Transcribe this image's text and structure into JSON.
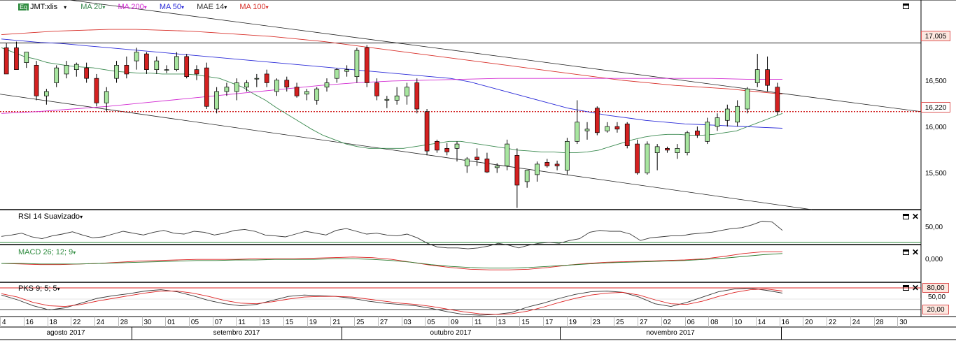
{
  "legend": {
    "eq_badge": "Eq",
    "symbol": "JMT:xlis",
    "ma20": "MA 20",
    "ma200": "MA 200",
    "ma50": "MA 50",
    "mae14": "MAE 14",
    "ma100": "MA 100",
    "colors": {
      "ma20": "#3b8a50",
      "ma200": "#d22bd2",
      "ma50": "#2a2ad8",
      "mae14": "#333333",
      "ma100": "#d8302a"
    }
  },
  "price_panel": {
    "resistance_label": "17,005",
    "last_price_label": "16,220",
    "ticks": [
      "16,500",
      "16,000",
      "15,500"
    ]
  },
  "rsi_panel": {
    "title": "RSI 14 Suavizado",
    "tick": "50,00"
  },
  "macd_panel": {
    "title": "MACD 26; 12; 9",
    "tick": "0,000"
  },
  "pks_panel": {
    "title": "PKS 9; 5; 5",
    "upper_label": "80,00",
    "mid_tick": "50,00",
    "lower_label": "20,00"
  },
  "x_axis": {
    "days": [
      "4",
      "16",
      "18",
      "22",
      "24",
      "28",
      "30",
      "01",
      "05",
      "07",
      "11",
      "13",
      "15",
      "19",
      "21",
      "25",
      "27",
      "03",
      "05",
      "09",
      "11",
      "13",
      "15",
      "17",
      "19",
      "23",
      "25",
      "27",
      "02",
      "06",
      "08",
      "10",
      "14",
      "16",
      "20",
      "22",
      "24",
      "28",
      "30"
    ],
    "months": [
      "agosto 2017",
      "setembro 2017",
      "outubro 2017",
      "novembro 2017"
    ]
  },
  "chart_data": [
    {
      "type": "candlestick",
      "symbol": "JMT:xlis",
      "ylim": [
        15.1,
        17.4
      ],
      "y_ticks": [
        15.5,
        16.0,
        16.5
      ],
      "horizontal_lines": [
        17.005,
        16.22
      ],
      "candles": [
        {
          "o": 16.95,
          "h": 17.0,
          "l": 16.65,
          "c": 16.65
        },
        {
          "o": 16.95,
          "h": 17.02,
          "l": 16.7,
          "c": 16.7
        },
        {
          "o": 16.78,
          "h": 16.9,
          "l": 16.72,
          "c": 16.9
        },
        {
          "o": 16.75,
          "h": 16.8,
          "l": 16.35,
          "c": 16.4
        },
        {
          "o": 16.4,
          "h": 16.48,
          "l": 16.3,
          "c": 16.45
        },
        {
          "o": 16.55,
          "h": 16.75,
          "l": 16.5,
          "c": 16.72
        },
        {
          "o": 16.65,
          "h": 16.8,
          "l": 16.6,
          "c": 16.75
        },
        {
          "o": 16.7,
          "h": 16.78,
          "l": 16.62,
          "c": 16.76
        },
        {
          "o": 16.72,
          "h": 16.78,
          "l": 16.55,
          "c": 16.6
        },
        {
          "o": 16.6,
          "h": 16.65,
          "l": 16.28,
          "c": 16.32
        },
        {
          "o": 16.32,
          "h": 16.5,
          "l": 16.22,
          "c": 16.45
        },
        {
          "o": 16.6,
          "h": 16.8,
          "l": 16.55,
          "c": 16.75
        },
        {
          "o": 16.75,
          "h": 16.85,
          "l": 16.6,
          "c": 16.65
        },
        {
          "o": 16.8,
          "h": 16.95,
          "l": 16.7,
          "c": 16.9
        },
        {
          "o": 16.88,
          "h": 16.9,
          "l": 16.65,
          "c": 16.7
        },
        {
          "o": 16.7,
          "h": 16.85,
          "l": 16.65,
          "c": 16.8
        },
        {
          "o": 16.7,
          "h": 16.75,
          "l": 16.66,
          "c": 16.7
        },
        {
          "o": 16.7,
          "h": 16.9,
          "l": 16.68,
          "c": 16.85
        },
        {
          "o": 16.85,
          "h": 16.88,
          "l": 16.6,
          "c": 16.62
        },
        {
          "o": 16.7,
          "h": 16.75,
          "l": 16.58,
          "c": 16.65
        },
        {
          "o": 16.72,
          "h": 16.78,
          "l": 16.25,
          "c": 16.28
        },
        {
          "o": 16.25,
          "h": 16.5,
          "l": 16.2,
          "c": 16.45
        },
        {
          "o": 16.45,
          "h": 16.55,
          "l": 16.4,
          "c": 16.5
        },
        {
          "o": 16.45,
          "h": 16.6,
          "l": 16.35,
          "c": 16.55
        },
        {
          "o": 16.5,
          "h": 16.58,
          "l": 16.45,
          "c": 16.55
        },
        {
          "o": 16.6,
          "h": 16.65,
          "l": 16.5,
          "c": 16.6
        },
        {
          "o": 16.65,
          "h": 16.7,
          "l": 16.5,
          "c": 16.55
        },
        {
          "o": 16.45,
          "h": 16.6,
          "l": 16.4,
          "c": 16.58
        },
        {
          "o": 16.58,
          "h": 16.62,
          "l": 16.45,
          "c": 16.5
        },
        {
          "o": 16.5,
          "h": 16.55,
          "l": 16.38,
          "c": 16.4
        },
        {
          "o": 16.42,
          "h": 16.48,
          "l": 16.35,
          "c": 16.45
        },
        {
          "o": 16.35,
          "h": 16.5,
          "l": 16.3,
          "c": 16.48
        },
        {
          "o": 16.5,
          "h": 16.6,
          "l": 16.45,
          "c": 16.55
        },
        {
          "o": 16.6,
          "h": 16.72,
          "l": 16.55,
          "c": 16.7
        },
        {
          "o": 16.68,
          "h": 16.75,
          "l": 16.62,
          "c": 16.7
        },
        {
          "o": 16.62,
          "h": 16.95,
          "l": 16.55,
          "c": 16.92
        },
        {
          "o": 16.95,
          "h": 16.98,
          "l": 16.5,
          "c": 16.55
        },
        {
          "o": 16.55,
          "h": 16.6,
          "l": 16.35,
          "c": 16.4
        },
        {
          "o": 16.35,
          "h": 16.4,
          "l": 16.26,
          "c": 16.36
        },
        {
          "o": 16.35,
          "h": 16.5,
          "l": 16.3,
          "c": 16.4
        },
        {
          "o": 16.4,
          "h": 16.55,
          "l": 16.3,
          "c": 16.5
        },
        {
          "o": 16.55,
          "h": 16.6,
          "l": 16.2,
          "c": 16.25
        },
        {
          "o": 16.22,
          "h": 16.25,
          "l": 15.72,
          "c": 15.77
        },
        {
          "o": 15.88,
          "h": 15.9,
          "l": 15.75,
          "c": 15.78
        },
        {
          "o": 15.8,
          "h": 15.86,
          "l": 15.72,
          "c": 15.76
        },
        {
          "o": 15.8,
          "h": 15.88,
          "l": 15.65,
          "c": 15.85
        },
        {
          "o": 15.6,
          "h": 15.7,
          "l": 15.52,
          "c": 15.68
        },
        {
          "o": 15.7,
          "h": 15.8,
          "l": 15.6,
          "c": 15.67
        },
        {
          "o": 15.68,
          "h": 15.75,
          "l": 15.52,
          "c": 15.53
        },
        {
          "o": 15.58,
          "h": 15.63,
          "l": 15.52,
          "c": 15.6
        },
        {
          "o": 15.6,
          "h": 15.9,
          "l": 15.55,
          "c": 15.85
        },
        {
          "o": 15.72,
          "h": 15.8,
          "l": 15.12,
          "c": 15.38
        },
        {
          "o": 15.42,
          "h": 15.55,
          "l": 15.35,
          "c": 15.55
        },
        {
          "o": 15.5,
          "h": 15.65,
          "l": 15.42,
          "c": 15.62
        },
        {
          "o": 15.64,
          "h": 15.68,
          "l": 15.58,
          "c": 15.6
        },
        {
          "o": 15.62,
          "h": 15.66,
          "l": 15.55,
          "c": 15.6
        },
        {
          "o": 15.55,
          "h": 15.92,
          "l": 15.5,
          "c": 15.88
        },
        {
          "o": 15.88,
          "h": 16.35,
          "l": 15.85,
          "c": 16.1
        },
        {
          "o": 16.0,
          "h": 16.1,
          "l": 15.9,
          "c": 16.02
        },
        {
          "o": 16.26,
          "h": 16.28,
          "l": 15.95,
          "c": 15.98
        },
        {
          "o": 16.0,
          "h": 16.1,
          "l": 15.98,
          "c": 16.05
        },
        {
          "o": 16.05,
          "h": 16.1,
          "l": 15.98,
          "c": 16.02
        },
        {
          "o": 16.08,
          "h": 16.1,
          "l": 15.8,
          "c": 15.83
        },
        {
          "o": 15.85,
          "h": 15.9,
          "l": 15.5,
          "c": 15.52
        },
        {
          "o": 15.52,
          "h": 15.88,
          "l": 15.5,
          "c": 15.85
        },
        {
          "o": 15.75,
          "h": 15.85,
          "l": 15.55,
          "c": 15.82
        },
        {
          "o": 15.8,
          "h": 15.82,
          "l": 15.75,
          "c": 15.78
        },
        {
          "o": 15.75,
          "h": 15.85,
          "l": 15.68,
          "c": 15.8
        },
        {
          "o": 15.75,
          "h": 16.0,
          "l": 15.72,
          "c": 15.98
        },
        {
          "o": 16.0,
          "h": 16.05,
          "l": 15.92,
          "c": 15.95
        },
        {
          "o": 15.88,
          "h": 16.15,
          "l": 15.85,
          "c": 16.1
        },
        {
          "o": 16.05,
          "h": 16.2,
          "l": 16.0,
          "c": 16.15
        },
        {
          "o": 16.12,
          "h": 16.3,
          "l": 16.05,
          "c": 16.25
        },
        {
          "o": 16.1,
          "h": 16.35,
          "l": 16.05,
          "c": 16.28
        },
        {
          "o": 16.25,
          "h": 16.5,
          "l": 16.2,
          "c": 16.48
        },
        {
          "o": 16.55,
          "h": 16.88,
          "l": 16.5,
          "c": 16.7
        },
        {
          "o": 16.7,
          "h": 16.85,
          "l": 16.45,
          "c": 16.52
        },
        {
          "o": 16.5,
          "h": 16.55,
          "l": 16.18,
          "c": 16.22
        }
      ],
      "overlays": {
        "MA 20": [
          16.95,
          16.9,
          16.85,
          16.82,
          16.78,
          16.76,
          16.74,
          16.73,
          16.72,
          16.7,
          16.68,
          16.67,
          16.66,
          16.66,
          16.65,
          16.65,
          16.65,
          16.64,
          16.62,
          16.6,
          16.55,
          16.5,
          16.42,
          16.35,
          16.26,
          16.18,
          16.1,
          16.02,
          15.95,
          15.9,
          15.85,
          15.82,
          15.8,
          15.8,
          15.8,
          15.8,
          15.82,
          15.84,
          15.86,
          15.88,
          15.88,
          15.86,
          15.84,
          15.82,
          15.8,
          15.78,
          15.77,
          15.76,
          15.76,
          15.75,
          15.75,
          15.76,
          15.78,
          15.82,
          15.86,
          15.9,
          15.93,
          15.95,
          15.96,
          15.96,
          15.95,
          15.95,
          15.96,
          15.98,
          16.0,
          16.05,
          16.1,
          16.15,
          16.2
        ],
        "MA 50": [
          17.05,
          17.03,
          17.01,
          17.0,
          16.98,
          16.96,
          16.94,
          16.92,
          16.9,
          16.88,
          16.86,
          16.84,
          16.82,
          16.8,
          16.78,
          16.76,
          16.74,
          16.72,
          16.7,
          16.68,
          16.66,
          16.64,
          16.62,
          16.6,
          16.56,
          16.5,
          16.44,
          16.38,
          16.32,
          16.26,
          16.22,
          16.18,
          16.15,
          16.12,
          16.1,
          16.08,
          16.07,
          16.06,
          16.05,
          16.04,
          16.03
        ],
        "MA 100": [
          17.1,
          17.12,
          17.14,
          17.15,
          17.16,
          17.16,
          17.15,
          17.14,
          17.12,
          17.1,
          17.08,
          17.05,
          17.02,
          16.98,
          16.94,
          16.9,
          16.86,
          16.82,
          16.78,
          16.74,
          16.7,
          16.66,
          16.62,
          16.58,
          16.55,
          16.52,
          16.5,
          16.48,
          16.45,
          16.42
        ],
        "MA 200": [
          16.2,
          16.22,
          16.25,
          16.28,
          16.32,
          16.36,
          16.4,
          16.44,
          16.48,
          16.52,
          16.55,
          16.57,
          16.58,
          16.59,
          16.6,
          16.6,
          16.6,
          16.6,
          16.6,
          16.6,
          16.6,
          16.59,
          16.59
        ]
      },
      "trendlines": [
        {
          "from": [
            0,
            17.6
          ],
          "to": [
            1316,
            16.22
          ]
        },
        {
          "from": [
            0,
            16.42
          ],
          "to": [
            1160,
            15.1
          ]
        }
      ]
    },
    {
      "type": "line",
      "title": "RSI 14 Suavizado",
      "ylim": [
        0,
        100
      ],
      "y_ticks": [
        50
      ],
      "values": [
        45,
        48,
        52,
        44,
        40,
        46,
        50,
        55,
        48,
        42,
        44,
        50,
        56,
        52,
        48,
        54,
        58,
        52,
        50,
        56,
        54,
        48,
        52,
        58,
        60,
        56,
        48,
        46,
        44,
        50,
        56,
        52,
        48,
        58,
        62,
        56,
        50,
        52,
        48,
        46,
        50,
        42,
        30,
        22,
        20,
        20,
        18,
        20,
        24,
        30,
        26,
        20,
        26,
        30,
        32,
        30,
        36,
        40,
        54,
        58,
        56,
        56,
        50,
        36,
        42,
        44,
        46,
        46,
        50,
        52,
        54,
        58,
        62,
        64,
        70,
        78,
        76,
        58
      ]
    },
    {
      "type": "line",
      "title": "MACD 26; 12; 9",
      "ylim": [
        -0.4,
        0.2
      ],
      "y_ticks": [
        0
      ],
      "series": [
        {
          "values": [
            -0.1,
            -0.11,
            -0.12,
            -0.12,
            -0.11,
            -0.1,
            -0.08,
            -0.06,
            -0.05,
            -0.04,
            -0.03,
            -0.03,
            -0.03,
            -0.02,
            -0.02,
            -0.02,
            -0.01,
            0.0,
            0.01,
            0.0,
            -0.03,
            -0.08,
            -0.13,
            -0.17,
            -0.2,
            -0.21,
            -0.21,
            -0.2,
            -0.17,
            -0.13,
            -0.1,
            -0.08,
            -0.07,
            -0.06,
            -0.05,
            -0.04,
            -0.02,
            0.02,
            0.07,
            0.1,
            0.1
          ]
        },
        {
          "values": [
            -0.1,
            -0.1,
            -0.11,
            -0.11,
            -0.11,
            -0.1,
            -0.09,
            -0.08,
            -0.07,
            -0.06,
            -0.05,
            -0.05,
            -0.04,
            -0.04,
            -0.03,
            -0.03,
            -0.03,
            -0.02,
            -0.02,
            -0.03,
            -0.05,
            -0.08,
            -0.12,
            -0.15,
            -0.17,
            -0.18,
            -0.18,
            -0.17,
            -0.15,
            -0.13,
            -0.11,
            -0.09,
            -0.08,
            -0.07,
            -0.06,
            -0.05,
            -0.03,
            -0.01,
            0.02,
            0.05,
            0.07
          ]
        }
      ]
    },
    {
      "type": "line",
      "title": "PKS 9; 5; 5",
      "ylim": [
        0,
        100
      ],
      "y_ticks": [
        20,
        50,
        80
      ],
      "series": [
        {
          "values": [
            62,
            48,
            30,
            18,
            24,
            38,
            52,
            60,
            66,
            74,
            78,
            72,
            60,
            46,
            36,
            30,
            34,
            46,
            58,
            62,
            60,
            58,
            52,
            44,
            38,
            34,
            30,
            22,
            12,
            4,
            2,
            4,
            10,
            26,
            38,
            52,
            64,
            72,
            74,
            70,
            56,
            36,
            28,
            40,
            56,
            72,
            80,
            82,
            76,
            68
          ]
        },
        {
          "values": [
            66,
            56,
            40,
            30,
            28,
            34,
            44,
            52,
            60,
            68,
            74,
            74,
            68,
            58,
            46,
            38,
            36,
            42,
            50,
            56,
            58,
            58,
            56,
            50,
            44,
            38,
            34,
            28,
            20,
            12,
            6,
            4,
            6,
            14,
            26,
            40,
            52,
            62,
            68,
            70,
            62,
            48,
            36,
            34,
            44,
            58,
            70,
            78,
            80,
            74
          ]
        }
      ]
    }
  ]
}
